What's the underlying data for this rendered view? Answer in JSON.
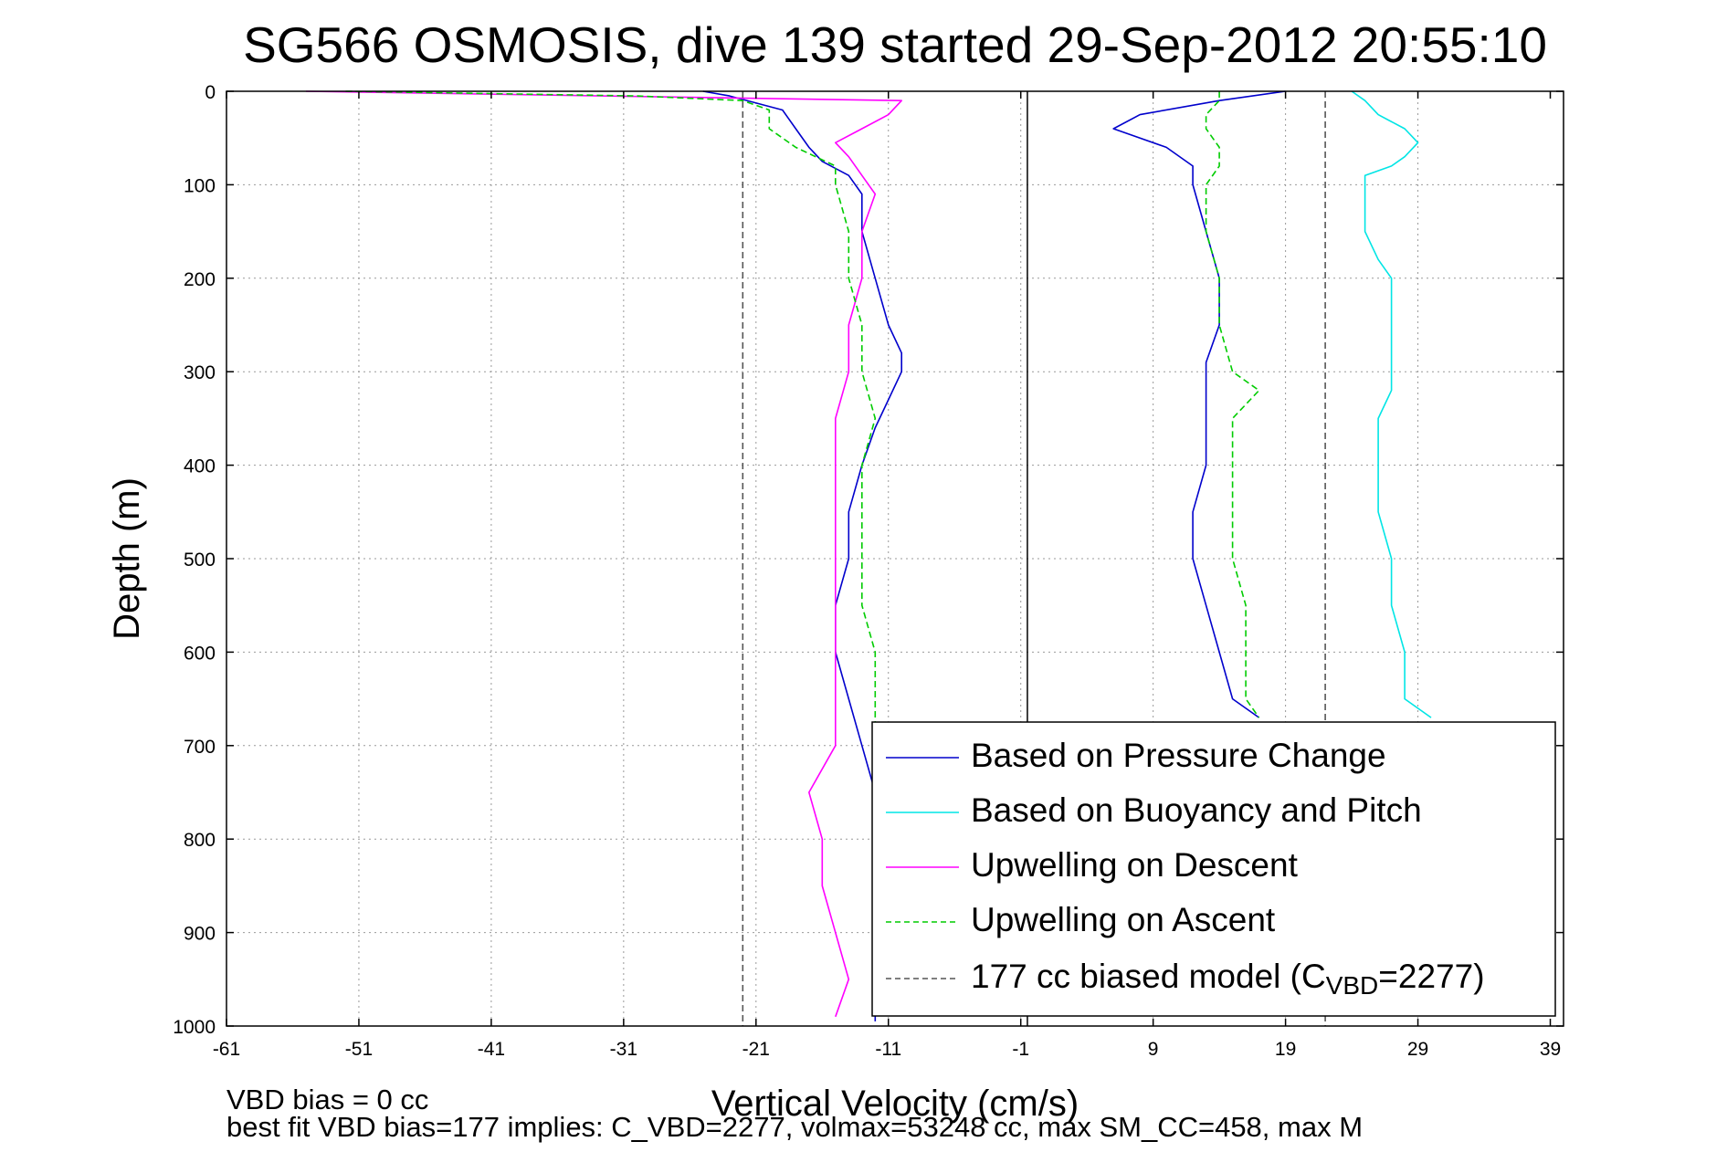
{
  "chart_data": {
    "type": "line",
    "title": "SG566 OSMOSIS, dive 139 started 29-Sep-2012 20:55:10",
    "xlabel": "Vertical Velocity (cm/s)",
    "ylabel": "Depth (m)",
    "xlim": [
      -61,
      40
    ],
    "ylim": [
      1000,
      0
    ],
    "y_reversed": true,
    "grid": true,
    "legend_placement": "bottom-right",
    "xticks": [
      "-61",
      "-51",
      "-41",
      "-31",
      "-21",
      "-11",
      "-1",
      "9",
      "19",
      "29",
      "39"
    ],
    "yticks": [
      "0",
      "100",
      "200",
      "300",
      "400",
      "500",
      "600",
      "700",
      "800",
      "900",
      "1000"
    ],
    "series": [
      {
        "name": "Based on Pressure Change",
        "color": "#0000cc",
        "style": "solid",
        "segments": [
          {
            "depth": [
              0,
              5,
              20,
              40,
              60,
              75,
              90,
              110,
              150,
              200,
              250,
              280,
              300,
              330,
              360,
              400,
              450,
              500,
              550,
              600,
              650,
              700,
              750,
              800,
              850,
              900,
              950,
              995
            ],
            "velocity": [
              -25,
              -23,
              -19,
              -18,
              -17,
              -16,
              -14,
              -13,
              -13,
              -12,
              -11,
              -10,
              -10,
              -11,
              -12,
              -13,
              -14,
              -14,
              -15,
              -15,
              -14,
              -13,
              -12,
              -12,
              -12,
              -12,
              -12,
              -12
            ]
          },
          {
            "depth": [
              0,
              10,
              25,
              40,
              60,
              80,
              100,
              150,
              200,
              250,
              290,
              300,
              330,
              360,
              400,
              450,
              500,
              550,
              600,
              650,
              670
            ],
            "velocity": [
              19,
              14,
              8,
              6,
              10,
              12,
              12,
              13,
              14,
              14,
              13,
              13,
              13,
              13,
              13,
              12,
              12,
              13,
              14,
              15,
              17
            ]
          }
        ]
      },
      {
        "name": "Based on Buoyancy and Pitch",
        "color": "#00e5e5",
        "style": "solid",
        "segments": [
          {
            "depth": [
              0,
              10,
              25,
              40,
              55,
              70,
              80,
              90,
              110,
              150,
              180,
              200,
              250,
              300,
              320,
              350,
              400,
              450,
              500,
              550,
              600,
              650,
              670
            ],
            "velocity": [
              24,
              25,
              26,
              28,
              29,
              28,
              27,
              25,
              25,
              25,
              26,
              27,
              27,
              27,
              27,
              26,
              26,
              26,
              27,
              27,
              28,
              28,
              30
            ]
          }
        ]
      },
      {
        "name": "Upwelling on Descent",
        "color": "#ff00ff",
        "style": "solid",
        "segments": [
          {
            "depth": [
              0,
              10,
              25,
              40,
              55,
              70,
              90,
              110,
              150,
              200,
              250,
              300,
              350,
              400,
              450,
              500,
              550,
              600,
              650,
              700,
              750,
              800,
              850,
              900,
              950,
              990
            ],
            "velocity": [
              -55,
              -10,
              -11,
              -13,
              -15,
              -14,
              -13,
              -12,
              -13,
              -13,
              -14,
              -14,
              -15,
              -15,
              -15,
              -15,
              -15,
              -15,
              -15,
              -15,
              -17,
              -16,
              -16,
              -15,
              -14,
              -15
            ]
          }
        ]
      },
      {
        "name": "Upwelling on Ascent",
        "color": "#00cc00",
        "style": "dashed",
        "segments": [
          {
            "depth": [
              0,
              5,
              10,
              20,
              40,
              60,
              80,
              100,
              150,
              200,
              250,
              300,
              350,
              400,
              450,
              500,
              550,
              600,
              650,
              700,
              750
            ],
            "velocity": [
              -52,
              -30,
              -22,
              -20,
              -20,
              -18,
              -15,
              -15,
              -14,
              -14,
              -13,
              -13,
              -12,
              -13,
              -13,
              -13,
              -13,
              -12,
              -12,
              -12,
              -12
            ]
          },
          {
            "depth": [
              0,
              10,
              25,
              40,
              60,
              80,
              100,
              150,
              200,
              250,
              300,
              320,
              350,
              400,
              450,
              500,
              550,
              600,
              650,
              670
            ],
            "velocity": [
              14,
              14,
              13,
              13,
              14,
              14,
              13,
              13,
              14,
              14,
              15,
              17,
              15,
              15,
              15,
              15,
              16,
              16,
              16,
              17
            ]
          }
        ]
      },
      {
        "name": "177 cc biased model (C_VBD=2277)",
        "color": "#555555",
        "style": "dashed",
        "segments": [
          {
            "depth": [
              0,
              1000
            ],
            "velocity": [
              -22,
              -22
            ]
          },
          {
            "depth": [
              0,
              1000
            ],
            "velocity": [
              22,
              22
            ]
          }
        ]
      }
    ],
    "reference_lines": [
      {
        "type": "vertical",
        "x": -0.5,
        "color": "#000000",
        "style": "solid"
      }
    ]
  },
  "legend": {
    "items": [
      {
        "label": "Based on Pressure Change",
        "color": "#0000cc",
        "style": "solid"
      },
      {
        "label": "Based on Buoyancy and Pitch",
        "color": "#00e5e5",
        "style": "solid"
      },
      {
        "label": "Upwelling on Descent",
        "color": "#ff00ff",
        "style": "solid"
      },
      {
        "label": "Upwelling on Ascent",
        "color": "#00cc00",
        "style": "dashed"
      }
    ],
    "model": {
      "prefix": "177 cc biased model (C",
      "sub": "VBD",
      "suffix": "=2277)",
      "color": "#555555",
      "style": "dashed"
    }
  },
  "footer": {
    "line1": "VBD bias = 0 cc",
    "line2": "best fit VBD bias=177 implies: C_VBD=2277, volmax=53248 cc, max SM_CC=458, max M"
  }
}
